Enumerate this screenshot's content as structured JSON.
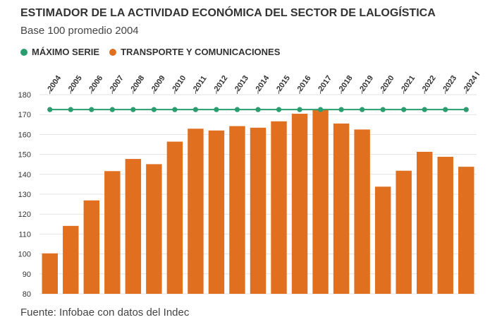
{
  "header": {
    "title": "ESTIMADOR DE LA ACTIVIDAD ECONÓMICA DEL SECTOR DE LALOGÍSTICA",
    "subtitle": "Base 100 promedio 2004"
  },
  "legend": {
    "items": [
      {
        "label": "MÁXIMO SERIE",
        "color": "#2a9d6f"
      },
      {
        "label": "TRANSPORTE Y COMUNICACIONES",
        "color": "#e07020"
      }
    ]
  },
  "footer": {
    "source": "Fuente: Infobae con datos del Indec"
  },
  "chart_data": {
    "type": "bar",
    "categories": [
      "2004",
      "2005",
      "2006",
      "2007",
      "2008",
      "2009",
      "2010",
      "2011",
      "2012",
      "2013",
      "2014",
      "2015",
      "2016",
      "2017",
      "2018",
      "2019",
      "2020",
      "2021",
      "2022",
      "2023",
      "2024 I"
    ],
    "series": [
      {
        "name": "TRANSPORTE Y COMUNICACIONES",
        "type": "bar",
        "color": "#e07020",
        "values": [
          100.3,
          114.1,
          126.9,
          141.6,
          147.7,
          145.1,
          156.4,
          162.9,
          162.0,
          164.2,
          163.4,
          166.6,
          170.4,
          172.5,
          165.5,
          162.5,
          133.8,
          141.8,
          151.3,
          148.8,
          143.8
        ]
      },
      {
        "name": "MÁXIMO SERIE",
        "type": "line",
        "color": "#2a9d6f",
        "values": [
          172.5,
          172.5,
          172.5,
          172.5,
          172.5,
          172.5,
          172.5,
          172.5,
          172.5,
          172.5,
          172.5,
          172.5,
          172.5,
          172.5,
          172.5,
          172.5,
          172.5,
          172.5,
          172.5,
          172.5,
          172.5
        ]
      }
    ],
    "yticks": [
      80,
      90,
      100,
      110,
      120,
      130,
      140,
      150,
      160,
      170,
      180
    ],
    "ylim": [
      80,
      180
    ],
    "grid": true,
    "legend_position": "top-left"
  }
}
